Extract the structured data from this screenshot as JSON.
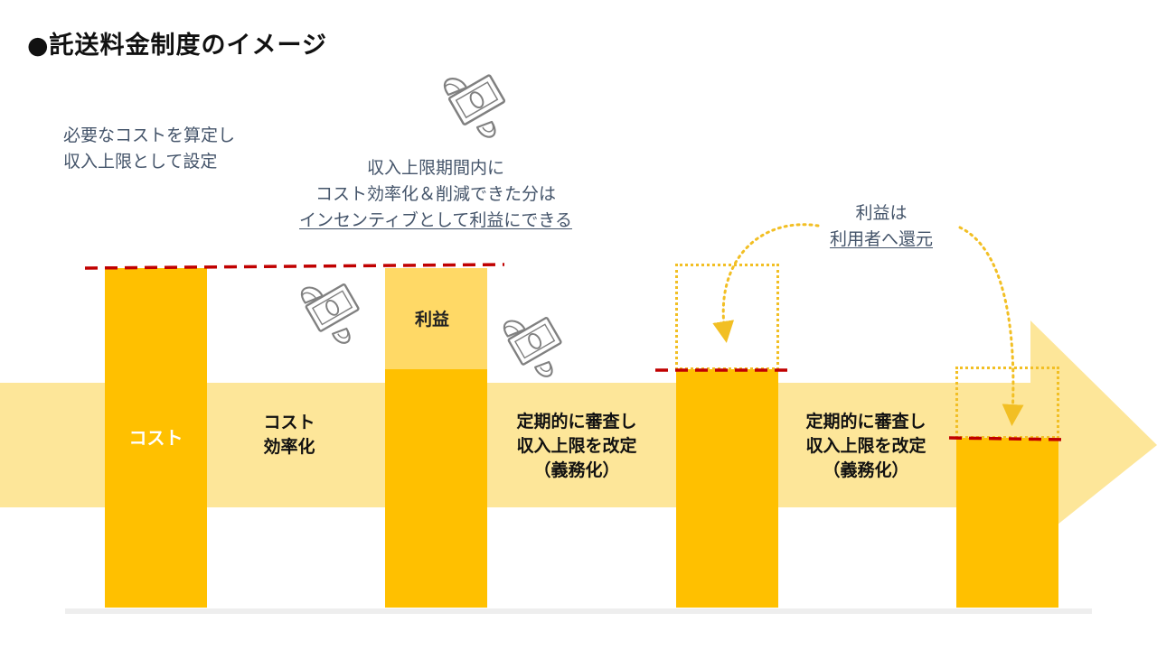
{
  "title": "●託送料金制度のイメージ",
  "notes": {
    "cost_setting": [
      "必要なコストを算定し",
      "収入上限として設定"
    ],
    "incentive": [
      "収入上限期間内に",
      "コスト効率化＆削減できた分は",
      "インセンティブとして利益にできる"
    ],
    "return": [
      "利益は",
      "利用者へ還元"
    ]
  },
  "bars": {
    "cost_label": "コスト",
    "profit_label": "利益"
  },
  "steps": {
    "efficiency": [
      "コスト",
      "効率化"
    ],
    "review_1": [
      "定期的に審査し",
      "収入上限を改定",
      "（義務化）"
    ],
    "review_2": [
      "定期的に審査し",
      "収入上限を改定",
      "（義務化）"
    ]
  },
  "colors": {
    "bar": "#ffc000",
    "profit": "#ffd966",
    "band": "#fde699",
    "limit_line": "#c00000",
    "dotted": "#f2bf24",
    "note_text": "#44546a"
  },
  "icons": [
    "flying-money-icon"
  ]
}
